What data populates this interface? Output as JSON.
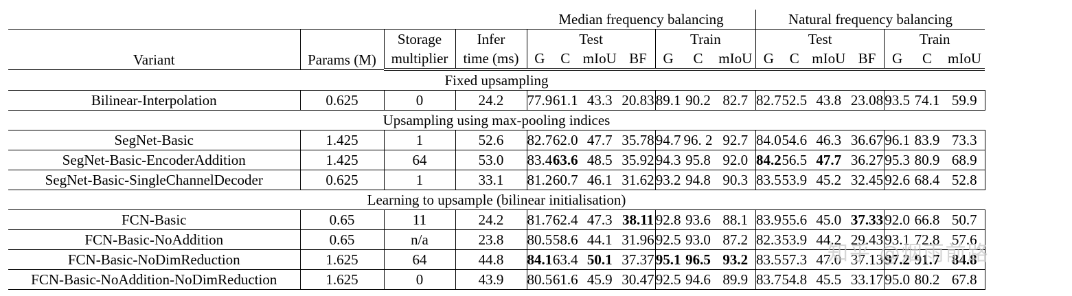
{
  "groups": {
    "median": "Median frequency balancing",
    "natural": "Natural frequency balancing"
  },
  "headers": {
    "variant": "Variant",
    "params": "Params (M)",
    "storage_top": "Storage",
    "storage_bottom": "multiplier",
    "infer_top": "Infer",
    "infer_bottom": "time (ms)",
    "test": "Test",
    "train": "Train",
    "test_cols": [
      "G",
      "C",
      "mIoU",
      "BF"
    ],
    "train_cols": [
      "G",
      "C",
      "mIoU"
    ]
  },
  "sections": [
    {
      "title": "Fixed upsampling",
      "rows": [
        {
          "variant": "Bilinear-Interpolation",
          "params": "0.625",
          "storage": "0",
          "infer": "24.2",
          "m_test": [
            "77.9",
            "61.1",
            "43.3",
            "20.83"
          ],
          "m_train": [
            "89.1",
            "90.2",
            "82.7"
          ],
          "n_test": [
            "82.7",
            "52.5",
            "43.8",
            "23.08"
          ],
          "n_train": [
            "93.5",
            "74.1",
            "59.9"
          ],
          "bold": []
        }
      ]
    },
    {
      "title": "Upsampling using max-pooling indices",
      "rows": [
        {
          "variant": "SegNet-Basic",
          "params": "1.425",
          "storage": "1",
          "infer": "52.6",
          "m_test": [
            "82.7",
            "62.0",
            "47.7",
            "35.78"
          ],
          "m_train": [
            "94.7",
            "96. 2",
            "92.7"
          ],
          "n_test": [
            "84.0",
            "54.6",
            "46.3",
            "36.67"
          ],
          "n_train": [
            "96.1",
            "83.9",
            "73.3"
          ],
          "bold": []
        },
        {
          "variant": "SegNet-Basic-EncoderAddition",
          "params": "1.425",
          "storage": "64",
          "infer": "53.0",
          "m_test": [
            "83.4",
            "63.6",
            "48.5",
            "35.92"
          ],
          "m_train": [
            "94.3",
            "95.8",
            "92.0"
          ],
          "n_test": [
            "84.2",
            "56.5",
            "47.7",
            "36.27"
          ],
          "n_train": [
            "95.3",
            "80.9",
            "68.9"
          ],
          "bold": [
            "m_test.1",
            "n_test.0",
            "n_test.2"
          ]
        },
        {
          "variant": "SegNet-Basic-SingleChannelDecoder",
          "params": "0.625",
          "storage": "1",
          "infer": "33.1",
          "m_test": [
            "81.2",
            "60.7",
            "46.1",
            "31.62"
          ],
          "m_train": [
            "93.2",
            "94.8",
            "90.3"
          ],
          "n_test": [
            "83.5",
            "53.9",
            "45.2",
            "32.45"
          ],
          "n_train": [
            "92.6",
            "68.4",
            "52.8"
          ],
          "bold": []
        }
      ]
    },
    {
      "title": "Learning to upsample (bilinear initialisation)",
      "rows": [
        {
          "variant": "FCN-Basic",
          "params": "0.65",
          "storage": "11",
          "infer": "24.2",
          "m_test": [
            "81.7",
            "62.4",
            "47.3",
            "38.11"
          ],
          "m_train": [
            "92.8",
            "93.6",
            "88.1"
          ],
          "n_test": [
            "83.9",
            "55.6",
            "45.0",
            "37.33"
          ],
          "n_train": [
            "92.0",
            "66.8",
            "50.7"
          ],
          "bold": [
            "m_test.3",
            "n_test.3"
          ]
        },
        {
          "variant": "FCN-Basic-NoAddition",
          "params": "0.65",
          "storage": "n/a",
          "infer": "23.8",
          "m_test": [
            "80.5",
            "58.6",
            "44.1",
            "31.96"
          ],
          "m_train": [
            "92.5",
            "93.0",
            "87.2"
          ],
          "n_test": [
            "82.3",
            "53.9",
            "44.2",
            "29.43"
          ],
          "n_train": [
            "93.1",
            "72.8",
            "57.6"
          ],
          "bold": []
        },
        {
          "variant": "FCN-Basic-NoDimReduction",
          "params": "1.625",
          "storage": "64",
          "infer": "44.8",
          "m_test": [
            "84.1",
            "63.4",
            "50.1",
            "37.37"
          ],
          "m_train": [
            "95.1",
            "96.5",
            "93.2"
          ],
          "n_test": [
            "83.5",
            "57.3",
            "47.0",
            "37.13"
          ],
          "n_train": [
            "97.2",
            "91.7",
            "84.8"
          ],
          "bold": [
            "m_test.0",
            "m_test.2",
            "m_train.0",
            "m_train.1",
            "m_train.2",
            "n_train.0",
            "n_train.1",
            "n_train.2"
          ]
        },
        {
          "variant": "FCN-Basic-NoAddition-NoDimReduction",
          "params": "1.625",
          "storage": "0",
          "infer": "43.9",
          "m_test": [
            "80.5",
            "61.6",
            "45.9",
            "30.47"
          ],
          "m_train": [
            "92.5",
            "94.6",
            "89.9"
          ],
          "n_test": [
            "83.7",
            "54.8",
            "45.5",
            "33.17"
          ],
          "n_train": [
            "95.0",
            "80.2",
            "67.8"
          ],
          "bold": []
        }
      ]
    }
  ],
  "watermark": "知乎 @烟雨前路"
}
